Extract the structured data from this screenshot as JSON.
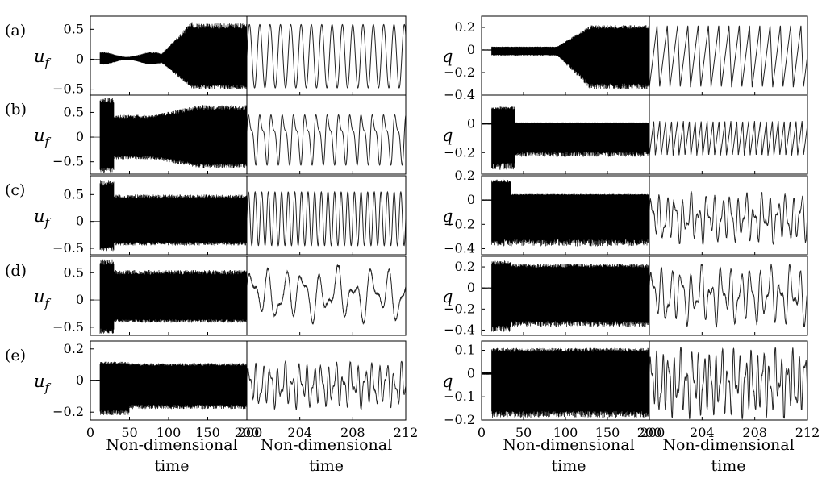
{
  "chart_data": {
    "type": "line",
    "title": "",
    "grid": false,
    "legend": "none",
    "x_ticks_long": [
      "0",
      "50",
      "100",
      "150",
      "200"
    ],
    "x_ticks_zoom": [
      "200",
      "204",
      "208",
      "212"
    ],
    "xlim_long": [
      0,
      200
    ],
    "xlim_zoom": [
      200,
      212
    ],
    "x_label_line1": "Non-dimensional",
    "x_label_line2": "time",
    "columns": [
      {
        "variable": "u",
        "subscript": "f",
        "rows": [
          {
            "label": "(a)",
            "ylim": [
              -0.6,
              0.72
            ],
            "ticks": [
              {
                "v": 0.5,
                "t": "0.5"
              },
              {
                "v": 0,
                "t": "0"
              },
              {
                "v": -0.5,
                "t": "−0.5"
              }
            ]
          },
          {
            "label": "(b)",
            "ylim": [
              -0.75,
              0.85
            ],
            "ticks": [
              {
                "v": 0.5,
                "t": "0.5"
              },
              {
                "v": 0,
                "t": "0"
              },
              {
                "v": -0.5,
                "t": "−0.5"
              }
            ]
          },
          {
            "label": "(c)",
            "ylim": [
              -0.62,
              0.85
            ],
            "ticks": [
              {
                "v": 0.5,
                "t": "0.5"
              },
              {
                "v": 0,
                "t": "0"
              },
              {
                "v": -0.5,
                "t": "−0.5"
              }
            ]
          },
          {
            "label": "(d)",
            "ylim": [
              -0.65,
              0.8
            ],
            "ticks": [
              {
                "v": 0.5,
                "t": "0.5"
              },
              {
                "v": 0,
                "t": "0"
              },
              {
                "v": -0.5,
                "t": "−0.5"
              }
            ]
          },
          {
            "label": "(e)",
            "ylim": [
              -0.25,
              0.25
            ],
            "ticks": [
              {
                "v": 0.2,
                "t": "0.2"
              },
              {
                "v": 0,
                "t": "0"
              },
              {
                "v": -0.2,
                "t": "−0.2"
              }
            ]
          }
        ]
      },
      {
        "variable": "q",
        "subscript": "",
        "rows": [
          {
            "label": "",
            "ylim": [
              -0.4,
              0.3
            ],
            "ticks": [
              {
                "v": 0.2,
                "t": "0.2"
              },
              {
                "v": 0,
                "t": "0"
              },
              {
                "v": -0.2,
                "t": "−0.2"
              },
              {
                "v": -0.4,
                "t": "−0.4"
              }
            ]
          },
          {
            "label": "",
            "ylim": [
              -0.35,
              0.2
            ],
            "ticks": [
              {
                "v": 0,
                "t": "0"
              },
              {
                "v": -0.2,
                "t": "−0.2"
              }
            ]
          },
          {
            "label": "",
            "ylim": [
              -0.45,
              0.2
            ],
            "ticks": [
              {
                "v": 0.2,
                "t": "0.2"
              },
              {
                "v": 0,
                "t": "0"
              },
              {
                "v": -0.2,
                "t": "−0.2"
              },
              {
                "v": -0.4,
                "t": "−0.4"
              }
            ]
          },
          {
            "label": "",
            "ylim": [
              -0.45,
              0.3
            ],
            "ticks": [
              {
                "v": 0.2,
                "t": "0.2"
              },
              {
                "v": 0,
                "t": "0"
              },
              {
                "v": -0.2,
                "t": "−0.2"
              },
              {
                "v": -0.4,
                "t": "−0.4"
              }
            ]
          },
          {
            "label": "",
            "ylim": [
              -0.2,
              0.14
            ],
            "ticks": [
              {
                "v": 0.1,
                "t": "0.1"
              },
              {
                "v": 0,
                "t": "0"
              },
              {
                "v": -0.1,
                "t": "−0.1"
              },
              {
                "v": -0.2,
                "t": "−0.2"
              }
            ]
          }
        ]
      }
    ]
  }
}
